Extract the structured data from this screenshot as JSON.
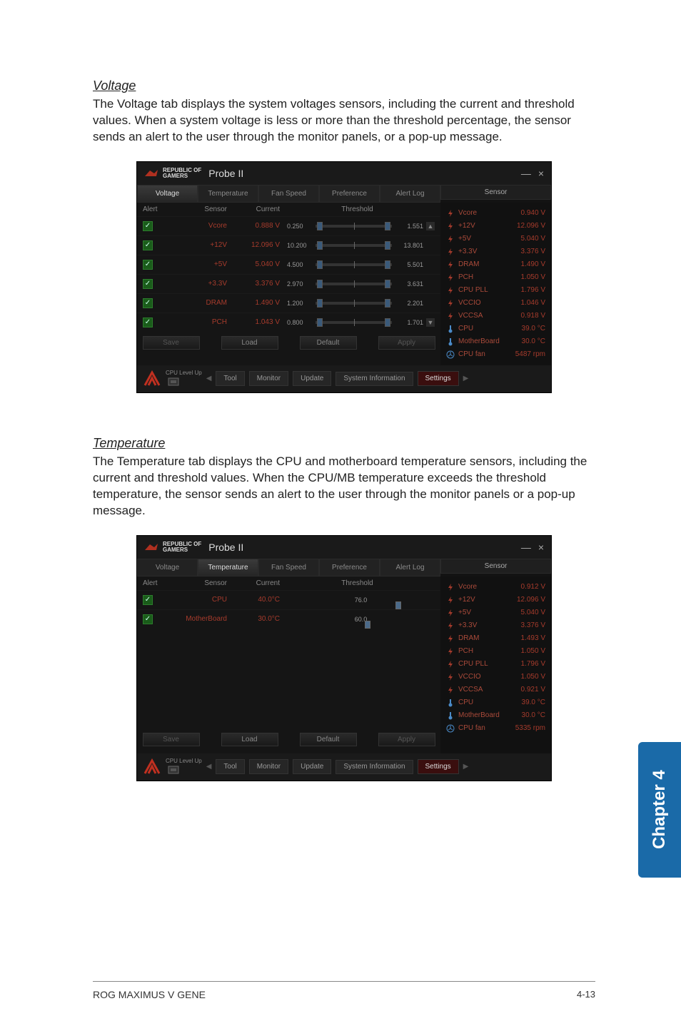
{
  "page": {
    "footer_left": "ROG MAXIMUS V GENE",
    "footer_right": "4-13",
    "chapter_tab": "Chapter 4"
  },
  "sections": {
    "voltage": {
      "title": "Voltage",
      "desc": "The Voltage tab displays the system voltages sensors, including the current and threshold values. When a system voltage is less or more than the threshold percentage, the sensor sends an alert to the user through the monitor panels, or a pop-up message."
    },
    "temperature": {
      "title": "Temperature",
      "desc": "The Temperature tab displays the CPU and motherboard temperature sensors, including the current and threshold values. When the CPU/MB temperature exceeds the threshold temperature, the sensor sends an alert to the user through the monitor panels or a pop-up message."
    }
  },
  "app": {
    "brand_line1": "REPUBLIC OF",
    "brand_line2": "GAMERS",
    "name": "Probe II",
    "tabs": [
      "Voltage",
      "Temperature",
      "Fan Speed",
      "Preference",
      "Alert Log"
    ],
    "sensor_panel_title": "Sensor",
    "cols": {
      "alert": "Alert",
      "sensor": "Sensor",
      "current": "Current",
      "threshold": "Threshold"
    },
    "buttons": {
      "save": "Save",
      "load": "Load",
      "default": "Default",
      "apply": "Apply"
    },
    "footer": {
      "cpu_level": "CPU Level Up",
      "tool": "Tool",
      "monitor": "Monitor",
      "update": "Update",
      "sysinfo": "System Information",
      "settings": "Settings"
    }
  },
  "voltage_rows": [
    {
      "sensor": "Vcore",
      "current": "0.888 V",
      "lo": "0.250",
      "hi": "1.551"
    },
    {
      "sensor": "+12V",
      "current": "12.096 V",
      "lo": "10.200",
      "hi": "13.801"
    },
    {
      "sensor": "+5V",
      "current": "5.040 V",
      "lo": "4.500",
      "hi": "5.501"
    },
    {
      "sensor": "+3.3V",
      "current": "3.376 V",
      "lo": "2.970",
      "hi": "3.631"
    },
    {
      "sensor": "DRAM",
      "current": "1.490 V",
      "lo": "1.200",
      "hi": "2.201"
    },
    {
      "sensor": "PCH",
      "current": "1.043 V",
      "lo": "0.800",
      "hi": "1.701"
    }
  ],
  "temp_rows": [
    {
      "sensor": "CPU",
      "current": "40.0°C",
      "thresh": "76.0",
      "pos": 72
    },
    {
      "sensor": "MotherBoard",
      "current": "30.0°C",
      "thresh": "60.0",
      "pos": 50
    }
  ],
  "sensor_panel_v": [
    {
      "ico": "bolt",
      "name": "Vcore",
      "val": "0.940 V"
    },
    {
      "ico": "bolt",
      "name": "+12V",
      "val": "12.096 V"
    },
    {
      "ico": "bolt",
      "name": "+5V",
      "val": "5.040 V"
    },
    {
      "ico": "bolt",
      "name": "+3.3V",
      "val": "3.376 V"
    },
    {
      "ico": "bolt",
      "name": "DRAM",
      "val": "1.490 V"
    },
    {
      "ico": "bolt",
      "name": "PCH",
      "val": "1.050 V"
    },
    {
      "ico": "bolt",
      "name": "CPU PLL",
      "val": "1.796 V"
    },
    {
      "ico": "bolt",
      "name": "VCCIO",
      "val": "1.046 V"
    },
    {
      "ico": "bolt",
      "name": "VCCSA",
      "val": "0.918 V"
    },
    {
      "ico": "therm",
      "name": "CPU",
      "val": "39.0 °C"
    },
    {
      "ico": "therm",
      "name": "MotherBoard",
      "val": "30.0 °C"
    },
    {
      "ico": "fan",
      "name": "CPU fan",
      "val": "5487 rpm"
    }
  ],
  "sensor_panel_t": [
    {
      "ico": "bolt",
      "name": "Vcore",
      "val": "0.912 V"
    },
    {
      "ico": "bolt",
      "name": "+12V",
      "val": "12.096 V"
    },
    {
      "ico": "bolt",
      "name": "+5V",
      "val": "5.040 V"
    },
    {
      "ico": "bolt",
      "name": "+3.3V",
      "val": "3.376 V"
    },
    {
      "ico": "bolt",
      "name": "DRAM",
      "val": "1.493 V"
    },
    {
      "ico": "bolt",
      "name": "PCH",
      "val": "1.050 V"
    },
    {
      "ico": "bolt",
      "name": "CPU PLL",
      "val": "1.796 V"
    },
    {
      "ico": "bolt",
      "name": "VCCIO",
      "val": "1.050 V"
    },
    {
      "ico": "bolt",
      "name": "VCCSA",
      "val": "0.921 V"
    },
    {
      "ico": "therm",
      "name": "CPU",
      "val": "39.0 °C"
    },
    {
      "ico": "therm",
      "name": "MotherBoard",
      "val": "30.0 °C"
    },
    {
      "ico": "fan",
      "name": "CPU fan",
      "val": "5335 rpm"
    }
  ],
  "colors": {
    "accent": "#a63b2c",
    "chapter": "#1a6aa8"
  }
}
